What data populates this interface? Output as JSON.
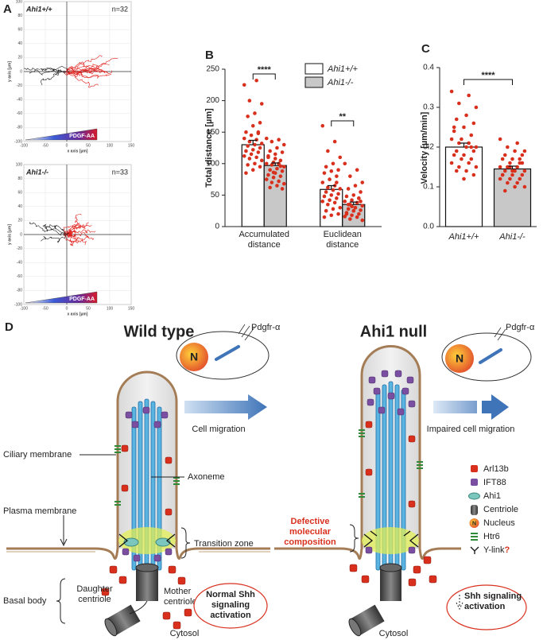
{
  "panel_a": {
    "label": "A",
    "plots": [
      {
        "genotype": "Ahi1+/+",
        "n": "n=32",
        "gradient_label": "PDGF-AA",
        "x_label": "x axis [µm]",
        "y_label": "y axis [µm]",
        "xlim": [
          -100,
          150
        ],
        "ylim": [
          -100,
          100
        ],
        "xticks": [
          -100,
          -50,
          0,
          50,
          100,
          150
        ],
        "yticks": [
          -100,
          -80,
          -60,
          -40,
          -20,
          0,
          20,
          40,
          60,
          80,
          100
        ]
      },
      {
        "genotype": "Ahi1-/-",
        "n": "n=33",
        "gradient_label": "PDGF-AA",
        "x_label": "x axis [µm]",
        "y_label": "y axis [µm]",
        "xlim": [
          -100,
          150
        ],
        "ylim": [
          -100,
          100
        ],
        "xticks": [
          -100,
          -50,
          0,
          50,
          100,
          150
        ],
        "yticks": [
          -100,
          -80,
          -60,
          -40,
          -20,
          0,
          20,
          40,
          60,
          80,
          100
        ]
      }
    ]
  },
  "chart_data": [
    {
      "type": "bar",
      "label": "B",
      "y_label": "Total distance [µm]",
      "categories": [
        "Accumulated distance",
        "Euclidean distance"
      ],
      "ylim": [
        0,
        250
      ],
      "yticks": [
        0,
        50,
        100,
        150,
        200,
        250
      ],
      "point_color": "#d9301e",
      "significance": [
        "****",
        "**"
      ],
      "series": [
        {
          "name": "Ahi1+/+",
          "color": "#ffffff",
          "values": [
            130,
            59
          ],
          "errors": [
            7,
            6
          ],
          "points": [
            [
              225,
              232,
              200,
              195,
              180,
              175,
              165,
              160,
              150,
              148,
              145,
              140,
              138,
              135,
              132,
              130,
              128,
              125,
              122,
              120,
              118,
              115,
              112,
              110,
              108,
              105,
              100,
              98,
              95,
              90,
              85,
              150
            ],
            [
              160,
              135,
              120,
              110,
              100,
              95,
              90,
              88,
              85,
              80,
              75,
              70,
              65,
              62,
              60,
              58,
              55,
              52,
              50,
              48,
              45,
              42,
              40,
              38,
              35,
              30,
              28,
              25,
              20,
              18,
              15,
              70
            ]
          ]
        },
        {
          "name": "Ahi1-/-",
          "color": "#c8c8c8",
          "values": [
            97,
            35
          ],
          "errors": [
            4,
            4
          ],
          "points": [
            [
              140,
              138,
              135,
              130,
              125,
              120,
              118,
              115,
              110,
              105,
              102,
              100,
              100,
              98,
              95,
              92,
              90,
              88,
              85,
              82,
              80,
              78,
              75,
              72,
              70,
              68,
              65,
              62,
              60,
              108,
              112,
              96,
              86
            ],
            [
              100,
              90,
              80,
              70,
              65,
              60,
              55,
              50,
              48,
              45,
              42,
              40,
              38,
              35,
              33,
              30,
              28,
              26,
              25,
              22,
              20,
              18,
              16,
              15,
              12,
              10,
              30,
              35,
              40,
              25,
              20,
              45,
              32
            ]
          ]
        }
      ]
    },
    {
      "type": "bar",
      "label": "C",
      "y_label": "Velocity [µm/min]",
      "categories": [
        "Ahi1+/+",
        "Ahi1-/-"
      ],
      "colors": [
        "#ffffff",
        "#c8c8c8"
      ],
      "values": [
        0.2,
        0.145
      ],
      "errors": [
        0.01,
        0.007
      ],
      "point_color": "#d9301e",
      "ylim": [
        0,
        0.4
      ],
      "yticks": [
        {
          "value": 0,
          "label": "0.0"
        },
        0.1,
        0.2,
        0.3,
        0.4
      ],
      "significance": "****",
      "points": [
        [
          0.34,
          0.33,
          0.31,
          0.3,
          0.28,
          0.27,
          0.26,
          0.25,
          0.24,
          0.23,
          0.22,
          0.22,
          0.21,
          0.21,
          0.2,
          0.2,
          0.19,
          0.19,
          0.18,
          0.18,
          0.17,
          0.17,
          0.16,
          0.16,
          0.15,
          0.15,
          0.14,
          0.14,
          0.13,
          0.12,
          0.25,
          0.2
        ],
        [
          0.22,
          0.21,
          0.2,
          0.19,
          0.19,
          0.18,
          0.18,
          0.17,
          0.17,
          0.16,
          0.16,
          0.15,
          0.15,
          0.15,
          0.14,
          0.14,
          0.14,
          0.13,
          0.13,
          0.13,
          0.12,
          0.12,
          0.12,
          0.11,
          0.11,
          0.1,
          0.1,
          0.09,
          0.16,
          0.14,
          0.13,
          0.17,
          0.15
        ]
      ]
    }
  ],
  "panel_d": {
    "label": "D",
    "wild_type": {
      "title": "Wild type",
      "receptor": "Pdgfr-α",
      "nucleus": "N",
      "migration": "Cell migration",
      "ciliary_membrane": "Ciliary membrane",
      "axoneme": "Axoneme",
      "plasma_membrane": "Plasma membrane",
      "transition_zone": "Transition zone",
      "basal_body": "Basal body",
      "daughter_centriole": "Daughter centriole",
      "mother_centriole": "Mother centriole",
      "shh": "Normal Shh signaling activation",
      "cytosol": "Cytosol"
    },
    "null": {
      "title": "Ahi1 null",
      "receptor": "Pdgfr-α",
      "nucleus": "N",
      "migration": "Impaired cell migration",
      "defect": "Defective molecular composition",
      "shh": "Shh signaling activation",
      "cytosol": "Cytosol"
    },
    "legend": [
      "Arl13b",
      "IFT88",
      "Ahi1",
      "Centriole",
      "Nucleus",
      "Htr6",
      "Y-link"
    ],
    "legend_query": "?",
    "legend_nucleus_icon": "N"
  }
}
